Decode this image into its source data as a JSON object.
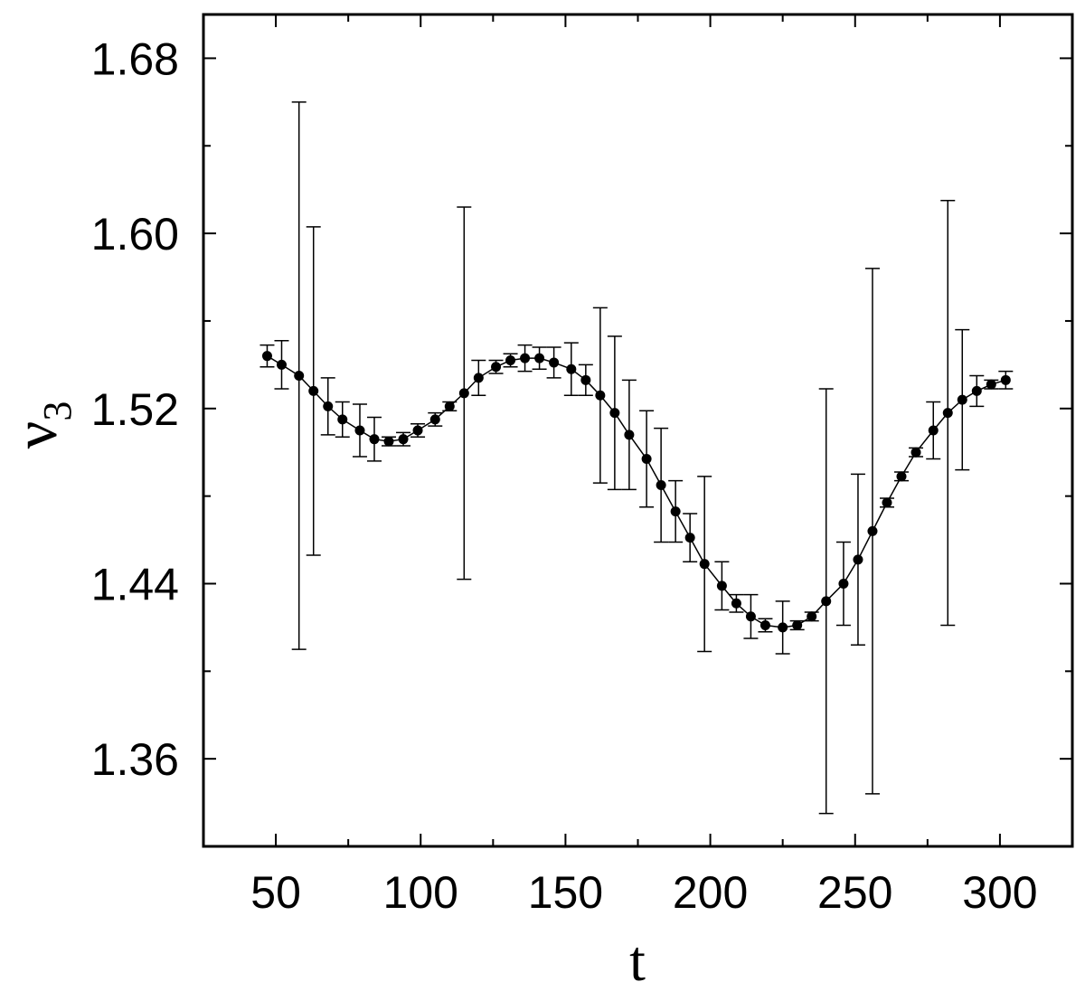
{
  "chart_data": {
    "type": "scatter",
    "xlabel": "t",
    "ylabel": "ν",
    "ylabel_subscript": "3",
    "xlim": [
      25,
      325
    ],
    "ylim": [
      1.32,
      1.7
    ],
    "x_ticks": [
      50,
      100,
      150,
      200,
      250,
      300
    ],
    "x_tick_labels": [
      "50",
      "100",
      "150",
      "200",
      "250",
      "300"
    ],
    "y_ticks": [
      1.36,
      1.44,
      1.52,
      1.6,
      1.68
    ],
    "y_tick_labels": [
      "1.36",
      "1.44",
      "1.52",
      "1.60",
      "1.68"
    ],
    "grid": false,
    "series": [
      {
        "points": [
          {
            "x": 47,
            "y": 1.544,
            "err": 0.005
          },
          {
            "x": 52,
            "y": 1.54,
            "err": 0.011
          },
          {
            "x": 58,
            "y": 1.535,
            "err": 0.125
          },
          {
            "x": 63,
            "y": 1.528,
            "err": 0.075
          },
          {
            "x": 68,
            "y": 1.521,
            "err": 0.013
          },
          {
            "x": 73,
            "y": 1.515,
            "err": 0.008
          },
          {
            "x": 79,
            "y": 1.51,
            "err": 0.012
          },
          {
            "x": 84,
            "y": 1.506,
            "err": 0.01
          },
          {
            "x": 89,
            "y": 1.505,
            "err": 0.002
          },
          {
            "x": 94,
            "y": 1.506,
            "err": 0.003
          },
          {
            "x": 99,
            "y": 1.51,
            "err": 0.003
          },
          {
            "x": 105,
            "y": 1.515,
            "err": 0.003
          },
          {
            "x": 110,
            "y": 1.521,
            "err": 0.002
          },
          {
            "x": 115,
            "y": 1.527,
            "err": 0.085
          },
          {
            "x": 120,
            "y": 1.534,
            "err": 0.008
          },
          {
            "x": 126,
            "y": 1.539,
            "err": 0.003
          },
          {
            "x": 131,
            "y": 1.542,
            "err": 0.003
          },
          {
            "x": 136,
            "y": 1.543,
            "err": 0.006
          },
          {
            "x": 141,
            "y": 1.543,
            "err": 0.005
          },
          {
            "x": 146,
            "y": 1.541,
            "err": 0.007
          },
          {
            "x": 152,
            "y": 1.538,
            "err": 0.012
          },
          {
            "x": 157,
            "y": 1.533,
            "err": 0.007
          },
          {
            "x": 162,
            "y": 1.526,
            "err": 0.04
          },
          {
            "x": 167,
            "y": 1.518,
            "err": 0.035
          },
          {
            "x": 172,
            "y": 1.508,
            "err": 0.025
          },
          {
            "x": 178,
            "y": 1.497,
            "err": 0.022
          },
          {
            "x": 183,
            "y": 1.485,
            "err": 0.026
          },
          {
            "x": 188,
            "y": 1.473,
            "err": 0.014
          },
          {
            "x": 193,
            "y": 1.461,
            "err": 0.011
          },
          {
            "x": 198,
            "y": 1.449,
            "err": 0.04
          },
          {
            "x": 204,
            "y": 1.439,
            "err": 0.011
          },
          {
            "x": 209,
            "y": 1.431,
            "err": 0.004
          },
          {
            "x": 214,
            "y": 1.425,
            "err": 0.01
          },
          {
            "x": 219,
            "y": 1.421,
            "err": 0.003
          },
          {
            "x": 225,
            "y": 1.42,
            "err": 0.012
          },
          {
            "x": 230,
            "y": 1.421,
            "err": 0.002
          },
          {
            "x": 235,
            "y": 1.425,
            "err": 0.002
          },
          {
            "x": 240,
            "y": 1.432,
            "err": 0.097
          },
          {
            "x": 246,
            "y": 1.44,
            "err": 0.019
          },
          {
            "x": 251,
            "y": 1.451,
            "err": 0.039
          },
          {
            "x": 256,
            "y": 1.464,
            "err": 0.12
          },
          {
            "x": 261,
            "y": 1.477,
            "err": 0.002
          },
          {
            "x": 266,
            "y": 1.489,
            "err": 0.002
          },
          {
            "x": 271,
            "y": 1.5,
            "err": 0.002
          },
          {
            "x": 277,
            "y": 1.51,
            "err": 0.013
          },
          {
            "x": 282,
            "y": 1.518,
            "err": 0.097
          },
          {
            "x": 287,
            "y": 1.524,
            "err": 0.032
          },
          {
            "x": 292,
            "y": 1.528,
            "err": 0.007
          },
          {
            "x": 297,
            "y": 1.531,
            "err": 0.002
          },
          {
            "x": 302,
            "y": 1.533,
            "err": 0.004
          }
        ]
      }
    ]
  }
}
